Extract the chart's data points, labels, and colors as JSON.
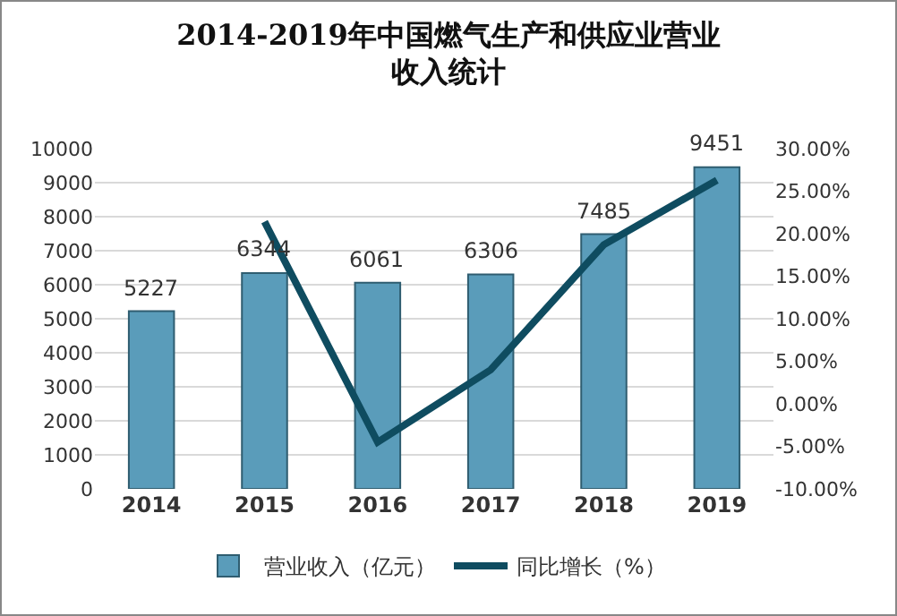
{
  "chart_data": {
    "type": "bar",
    "title": "2014-2019年中国燃气生产和供应业营业收入统计",
    "categories": [
      "2014",
      "2015",
      "2016",
      "2017",
      "2018",
      "2019"
    ],
    "series": [
      {
        "name": "营业收入（亿元）",
        "color": "#5a9cba",
        "values": [
          5227,
          6344,
          6061,
          6306,
          7485,
          9451
        ],
        "value_labels": [
          "5227",
          "6344",
          "6061",
          "6306",
          "7485",
          "9451"
        ]
      },
      {
        "name": "同比增长（%）",
        "type": "line",
        "axis": "y2",
        "color": "#0f4c60",
        "values": [
          null,
          21.4,
          -4.5,
          4.0,
          18.7,
          26.3
        ]
      }
    ],
    "ylim": [
      0,
      10000
    ],
    "yticks": [
      0,
      1000,
      2000,
      3000,
      4000,
      5000,
      6000,
      7000,
      8000,
      9000,
      10000
    ],
    "y2lim": [
      -10,
      30
    ],
    "y2ticks": [
      {
        "value": -10,
        "label": "-10.00%"
      },
      {
        "value": -5,
        "label": "-5.00%"
      },
      {
        "value": 0,
        "label": "0.00%"
      },
      {
        "value": 5,
        "label": "5.00%"
      },
      {
        "value": 10,
        "label": "10.00%"
      },
      {
        "value": 15,
        "label": "15.00%"
      },
      {
        "value": 20,
        "label": "20.00%"
      },
      {
        "value": 25,
        "label": "25.00%"
      },
      {
        "value": 30,
        "label": "30.00%"
      }
    ],
    "grid": "y",
    "legend": "bottom",
    "marker": "none",
    "line_style": "solid"
  }
}
